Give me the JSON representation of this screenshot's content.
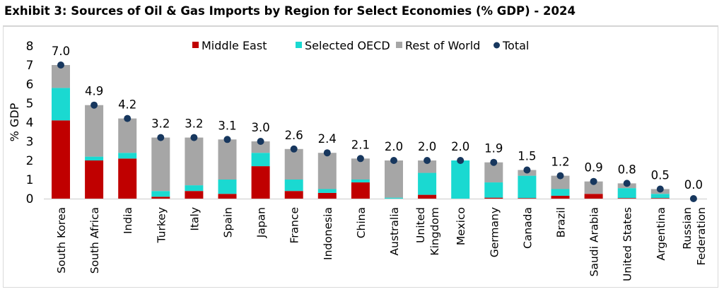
{
  "title": "Exhibit 3: Sources of Oil & Gas Imports by Region for Select Economies (% GDP) - 2024",
  "colors": {
    "middle_east": "#c00000",
    "selected_oecd": "#1ad9d1",
    "rest_of_world": "#a6a6a6",
    "total": "#17375e"
  },
  "chart_data": {
    "type": "bar",
    "stacked": true,
    "title": "Exhibit 3: Sources of Oil & Gas Imports by Region for Select Economies (% GDP) - 2024",
    "xlabel": "",
    "ylabel": "% GDP",
    "ylim": [
      0,
      8
    ],
    "yticks": [
      0,
      1,
      2,
      3,
      4,
      5,
      6,
      7,
      8
    ],
    "grid": false,
    "legend_position": "top-center",
    "categories": [
      "South Korea",
      "South Africa",
      "India",
      "Turkey",
      "Italy",
      "Spain",
      "Japan",
      "France",
      "Indonesia",
      "China",
      "Australia",
      "United Kingdom",
      "Mexico",
      "Germany",
      "Canada",
      "Brazil",
      "Saudi Arabia",
      "United States",
      "Argentina",
      "Russian Federation"
    ],
    "category_labels": [
      [
        "South Korea"
      ],
      [
        "South Africa"
      ],
      [
        "India"
      ],
      [
        "Turkey"
      ],
      [
        "Italy"
      ],
      [
        "Spain"
      ],
      [
        "Japan"
      ],
      [
        "France"
      ],
      [
        "Indonesia"
      ],
      [
        "China"
      ],
      [
        "Australia"
      ],
      [
        "United",
        "Kingdom"
      ],
      [
        "Mexico"
      ],
      [
        "Germany"
      ],
      [
        "Canada"
      ],
      [
        "Brazil"
      ],
      [
        "Saudi Arabia"
      ],
      [
        "United States"
      ],
      [
        "Argentina"
      ],
      [
        "Russian",
        "Federation"
      ]
    ],
    "series": [
      {
        "name": "Middle East",
        "values": [
          4.1,
          2.0,
          2.1,
          0.1,
          0.4,
          0.25,
          1.7,
          0.4,
          0.3,
          0.85,
          0.0,
          0.2,
          0.0,
          0.05,
          0.03,
          0.15,
          0.25,
          0.03,
          0.03,
          0.0
        ]
      },
      {
        "name": "Selected OECD",
        "values": [
          1.7,
          0.2,
          0.3,
          0.3,
          0.3,
          0.75,
          0.7,
          0.6,
          0.2,
          0.15,
          0.05,
          1.15,
          2.0,
          0.8,
          1.17,
          0.35,
          0.0,
          0.52,
          0.22,
          0.0
        ]
      },
      {
        "name": "Rest of World",
        "values": [
          1.2,
          2.7,
          1.8,
          2.8,
          2.5,
          2.1,
          0.6,
          1.6,
          1.9,
          1.1,
          1.95,
          0.65,
          0.0,
          1.05,
          0.3,
          0.7,
          0.65,
          0.25,
          0.25,
          0.0
        ]
      }
    ],
    "total": {
      "name": "Total",
      "values": [
        7.0,
        4.9,
        4.2,
        3.2,
        3.2,
        3.1,
        3.0,
        2.6,
        2.4,
        2.1,
        2.0,
        2.0,
        2.0,
        1.9,
        1.5,
        1.2,
        0.9,
        0.8,
        0.5,
        0.0
      ],
      "labels": [
        "7.0",
        "4.9",
        "4.2",
        "3.2",
        "3.2",
        "3.1",
        "3.0",
        "2.6",
        "2.4",
        "2.1",
        "2.0",
        "2.0",
        "2.0",
        "1.9",
        "1.5",
        "1.2",
        "0.9",
        "0.8",
        "0.5",
        "0.0"
      ]
    },
    "legend": [
      "Middle East",
      "Selected OECD",
      "Rest of World",
      "Total"
    ]
  }
}
